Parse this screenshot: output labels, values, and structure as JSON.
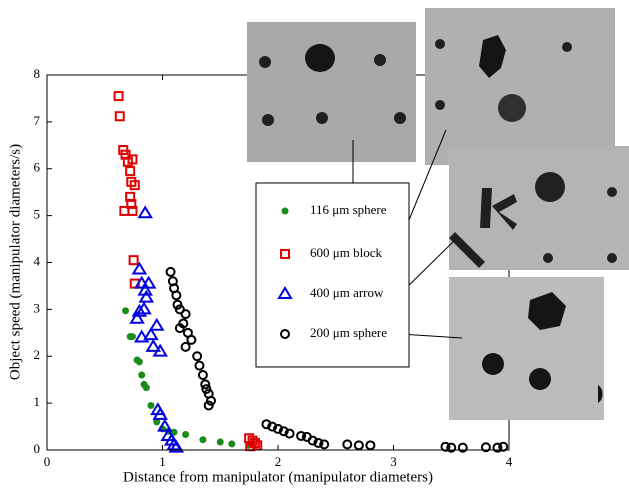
{
  "chart_data": {
    "type": "scatter",
    "xlabel": "Distance from manipulator (manipulator diameters)",
    "ylabel": "Object speed (manipulator diameters/s)",
    "xlim": [
      0,
      4
    ],
    "ylim": [
      0,
      8
    ],
    "xticks": [
      0,
      1,
      2,
      3,
      4
    ],
    "yticks": [
      0,
      1,
      2,
      3,
      4,
      5,
      6,
      7,
      8
    ],
    "grid": false,
    "series": [
      {
        "name": "116 μm sphere",
        "color": "#1a8c1a",
        "marker": "dot",
        "x": [
          0.68,
          0.72,
          0.74,
          0.78,
          0.8,
          0.82,
          0.84,
          0.86,
          0.9,
          0.95,
          1.0,
          1.05,
          1.1,
          1.2,
          1.35,
          1.5,
          1.6,
          1.75
        ],
        "values": [
          2.97,
          2.42,
          2.42,
          1.92,
          1.88,
          1.6,
          1.4,
          1.33,
          0.95,
          0.6,
          0.45,
          0.4,
          0.38,
          0.33,
          0.22,
          0.17,
          0.13,
          0.1
        ]
      },
      {
        "name": "600 μm block",
        "color": "#e00000",
        "marker": "square",
        "x": [
          0.62,
          0.63,
          0.66,
          0.68,
          0.7,
          0.74,
          0.72,
          0.73,
          0.76,
          0.72,
          0.73,
          0.67,
          0.74,
          0.75,
          0.76,
          1.75,
          1.78,
          1.8,
          1.82,
          1.76
        ],
        "values": [
          7.55,
          7.12,
          6.4,
          6.3,
          6.15,
          6.2,
          5.95,
          5.72,
          5.65,
          5.4,
          5.25,
          5.1,
          5.1,
          4.05,
          3.55,
          0.25,
          0.2,
          0.15,
          0.1,
          0.08
        ]
      },
      {
        "name": "400 μm arrow",
        "color": "#0000e0",
        "marker": "triangle",
        "x": [
          0.85,
          0.8,
          0.82,
          0.85,
          0.88,
          0.86,
          0.84,
          0.8,
          0.78,
          0.95,
          0.9,
          0.92,
          0.98,
          0.82,
          0.96,
          0.98,
          1.02,
          1.05,
          1.08,
          1.1,
          1.12
        ],
        "values": [
          5.05,
          3.85,
          3.55,
          3.4,
          3.55,
          3.25,
          3.0,
          2.95,
          2.8,
          2.65,
          2.45,
          2.2,
          2.1,
          2.4,
          0.85,
          0.75,
          0.5,
          0.3,
          0.2,
          0.1,
          0.05
        ]
      },
      {
        "name": "200 μm sphere",
        "color": "#000000",
        "marker": "circle",
        "x": [
          1.07,
          1.09,
          1.1,
          1.12,
          1.13,
          1.15,
          1.2,
          1.18,
          1.15,
          1.22,
          1.25,
          1.2,
          1.3,
          1.32,
          1.35,
          1.37,
          1.4,
          1.42,
          1.4,
          1.38,
          1.9,
          1.95,
          2.0,
          2.05,
          2.1,
          2.2,
          2.25,
          2.3,
          2.35,
          2.4,
          2.6,
          2.7,
          2.8,
          3.45,
          3.5,
          3.6,
          3.8,
          3.9,
          3.95
        ],
        "values": [
          3.8,
          3.6,
          3.45,
          3.3,
          3.1,
          3.0,
          2.9,
          2.7,
          2.6,
          2.5,
          2.35,
          2.2,
          2.0,
          1.8,
          1.6,
          1.4,
          1.2,
          1.05,
          0.95,
          1.3,
          0.55,
          0.5,
          0.45,
          0.4,
          0.35,
          0.3,
          0.28,
          0.2,
          0.15,
          0.12,
          0.12,
          0.1,
          0.1,
          0.07,
          0.05,
          0.05,
          0.06,
          0.05,
          0.07
        ]
      }
    ]
  }
}
